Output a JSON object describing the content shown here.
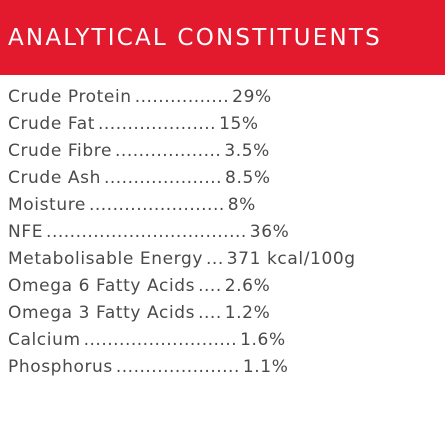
{
  "header": {
    "title": "ANALYTICAL CONSTITUENTS",
    "background": "#e3192e",
    "text_color": "#ffffff"
  },
  "text_color": "#4a4a4a",
  "rows": [
    {
      "label": "Crude Protein",
      "leader": "................",
      "value": "29%"
    },
    {
      "label": "Crude Fat",
      "leader": "....................",
      "value": "15%"
    },
    {
      "label": "Crude Fibre",
      "leader": "..................",
      "value": "3.5%"
    },
    {
      "label": "Crude Ash",
      "leader": "....................",
      "value": "8.5%"
    },
    {
      "label": "Moisture",
      "leader": ".......................",
      "value": "8%"
    },
    {
      "label": "NFE",
      "leader": "..................................",
      "value": "36%"
    },
    {
      "label": "Metabolisable Energy",
      "leader": "...",
      "value": "371 kcal/100g"
    },
    {
      "label": "Omega 6 Fatty Acids",
      "leader": "....",
      "value": "2.6%"
    },
    {
      "label": "Omega 3 Fatty Acids",
      "leader": "....",
      "value": "1.2%"
    },
    {
      "label": "Calcium",
      "leader": "..........................",
      "value": "1.6%"
    },
    {
      "label": "Phosphorus",
      "leader": ".....................",
      "value": "1.1%"
    }
  ]
}
